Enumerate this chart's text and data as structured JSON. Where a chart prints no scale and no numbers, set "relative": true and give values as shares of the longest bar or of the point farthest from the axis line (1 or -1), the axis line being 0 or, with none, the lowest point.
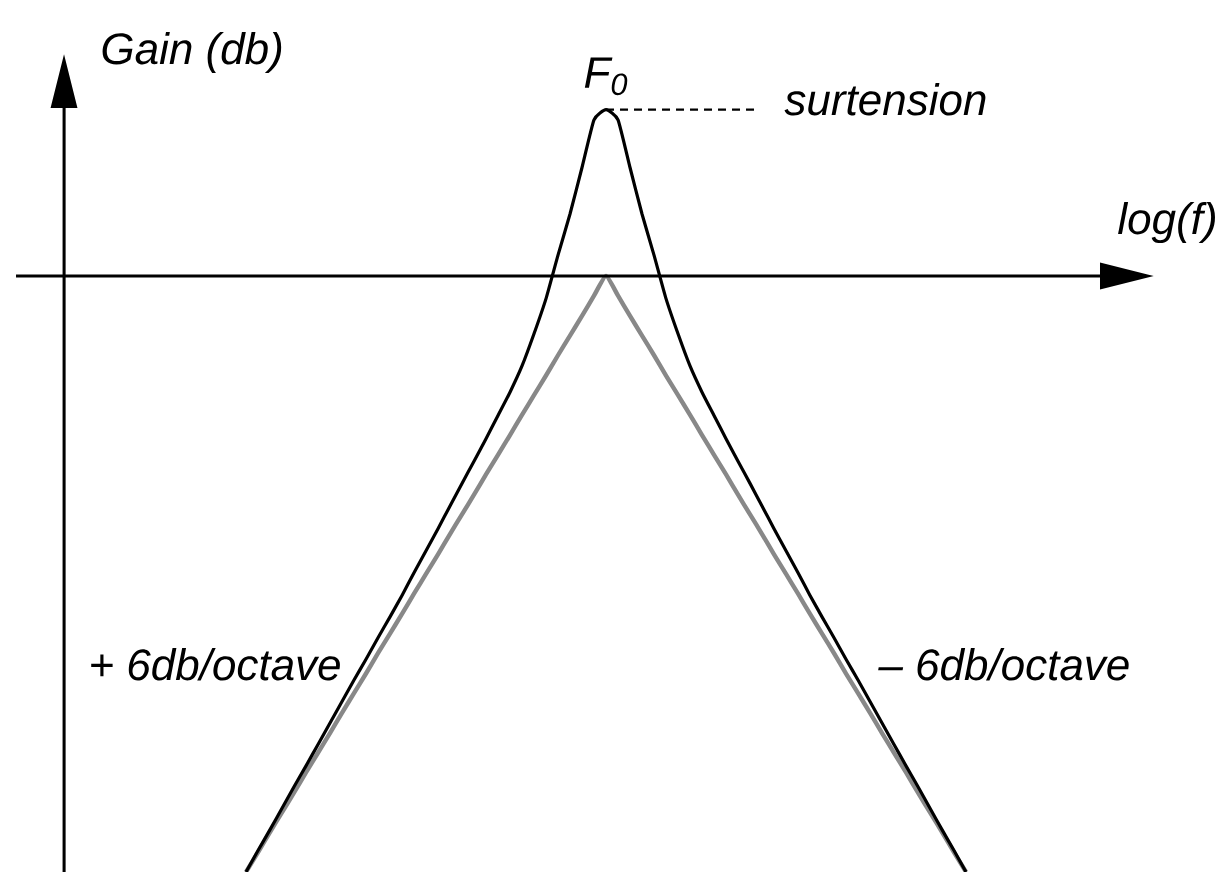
{
  "chart_data": {
    "type": "line",
    "relative": true,
    "xlabel": "log(f)",
    "ylabel": "Gain (db)",
    "categories": [
      null,
      null,
      null,
      null,
      null,
      null,
      null,
      null,
      null,
      null,
      null,
      null,
      null,
      null,
      null,
      null,
      null,
      null,
      null,
      null,
      null,
      null,
      null,
      null,
      null,
      null,
      null,
      null,
      null,
      null,
      null,
      null,
      null,
      null,
      null,
      null,
      null,
      null,
      null,
      null,
      null,
      null,
      null,
      null,
      null,
      null,
      null,
      null,
      null,
      null,
      null,
      null,
      null,
      null,
      null,
      null,
      null,
      null,
      null,
      null,
      null
    ],
    "series": [
      {
        "color": "#888888",
        "values": [
          -1,
          -0.967,
          -0.933,
          -0.9,
          -0.867,
          -0.833,
          -0.8,
          -0.767,
          -0.733,
          -0.7,
          -0.667,
          -0.633,
          -0.6,
          -0.567,
          -0.533,
          -0.5,
          -0.467,
          -0.433,
          -0.4,
          -0.367,
          -0.333,
          -0.3,
          -0.267,
          -0.233,
          -0.2,
          -0.167,
          -0.133,
          -0.1,
          -0.067,
          -0.033,
          0,
          -0.033,
          -0.067,
          -0.1,
          -0.133,
          -0.167,
          -0.2,
          -0.233,
          -0.267,
          -0.3,
          -0.333,
          -0.367,
          -0.4,
          -0.433,
          -0.467,
          -0.5,
          -0.533,
          -0.567,
          -0.6,
          -0.633,
          -0.667,
          -0.7,
          -0.733,
          -0.767,
          -0.8,
          -0.833,
          -0.867,
          -0.9,
          -0.933,
          -0.967,
          -1
        ]
      },
      {
        "color": "#000000",
        "values": [
          -1,
          -0.964,
          -0.929,
          -0.893,
          -0.857,
          -0.822,
          -0.786,
          -0.75,
          -0.714,
          -0.678,
          -0.643,
          -0.607,
          -0.572,
          -0.536,
          -0.498,
          -0.461,
          -0.424,
          -0.386,
          -0.348,
          -0.311,
          -0.273,
          -0.234,
          -0.195,
          -0.151,
          -0.097,
          -0.038,
          0.035,
          0.104,
          0.182,
          0.262,
          0.279,
          0.262,
          0.182,
          0.104,
          0.035,
          -0.038,
          -0.097,
          -0.151,
          -0.195,
          -0.234,
          -0.273,
          -0.311,
          -0.348,
          -0.386,
          -0.424,
          -0.461,
          -0.498,
          -0.536,
          -0.572,
          -0.607,
          -0.643,
          -0.678,
          -0.714,
          -0.75,
          -0.786,
          -0.822,
          -0.857,
          -0.893,
          -0.929,
          -0.964,
          -1
        ]
      }
    ],
    "ref_lines": [
      {
        "axis": "y",
        "value": 0.279,
        "label": "surtension",
        "line_style": "dashed"
      }
    ],
    "annotations": [
      "F$_{0}$",
      "+ 6db/octave",
      "– 6db/octave"
    ]
  }
}
